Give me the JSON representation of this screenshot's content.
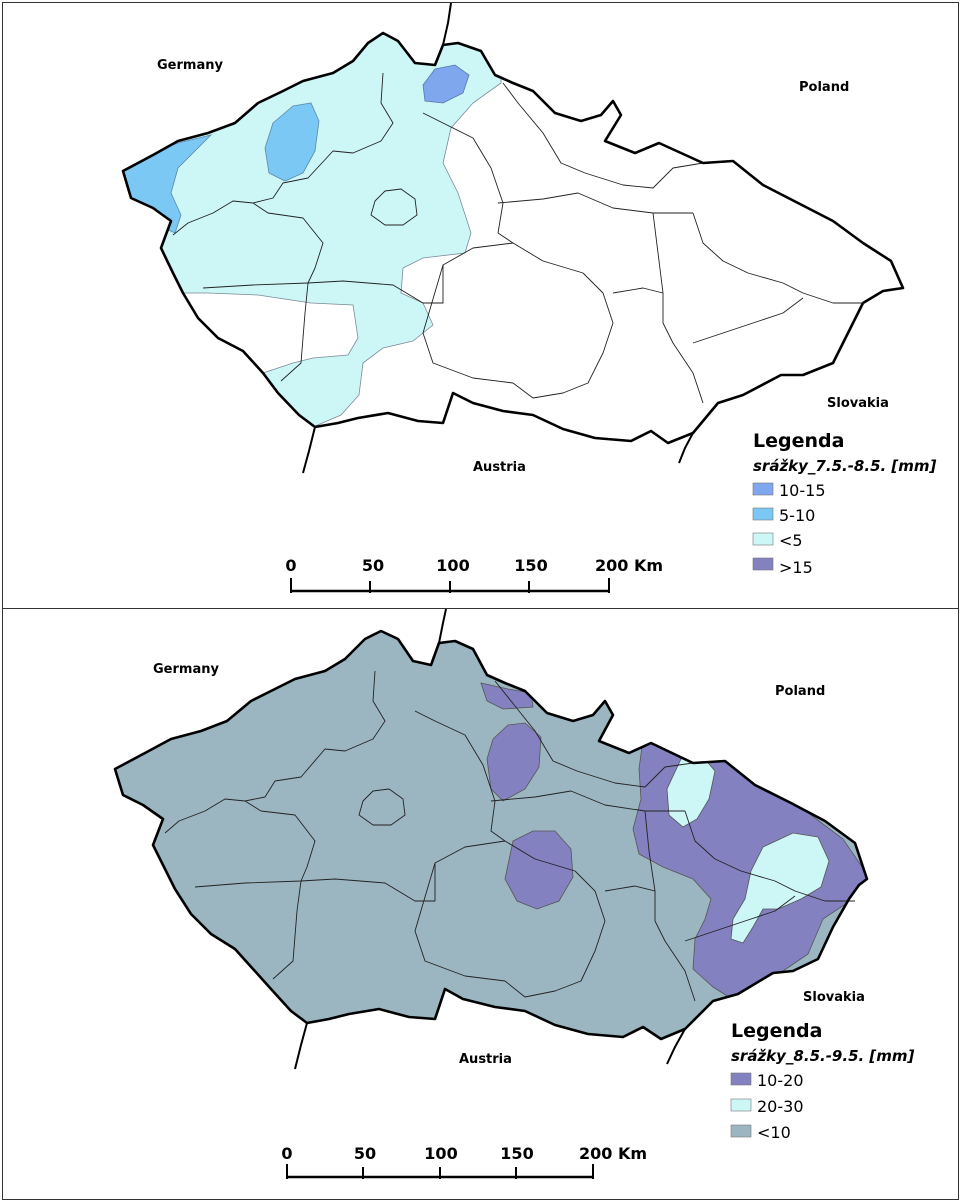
{
  "maps": [
    {
      "countries": {
        "germany": "Germany",
        "poland": "Poland",
        "slovakia": "Slovakia",
        "austria": "Austria"
      },
      "legend": {
        "title": "Legenda",
        "subtitle": "srážky_7.5.-8.5. [mm]",
        "items": [
          {
            "label": "10-15",
            "color": "#7ea7ee"
          },
          {
            "label": "5-10",
            "color": "#7cc8f5"
          },
          {
            "label": "<5",
            "color": "#cdf6f7"
          },
          {
            "label": ">15",
            "color": "#8381c0"
          }
        ]
      },
      "scale": {
        "labels": [
          "0",
          "50",
          "100",
          "150",
          "200 Km"
        ]
      }
    },
    {
      "countries": {
        "germany": "Germany",
        "poland": "Poland",
        "slovakia": "Slovakia",
        "austria": "Austria"
      },
      "legend": {
        "title": "Legenda",
        "subtitle": "srážky_8.5.-9.5. [mm]",
        "items": [
          {
            "label": "10-20",
            "color": "#8381c0"
          },
          {
            "label": "20-30",
            "color": "#cdf6f7"
          },
          {
            "label": "<10",
            "color": "#9bb6c0"
          }
        ]
      },
      "scale": {
        "labels": [
          "0",
          "50",
          "100",
          "150",
          "200 Km"
        ]
      }
    }
  ]
}
